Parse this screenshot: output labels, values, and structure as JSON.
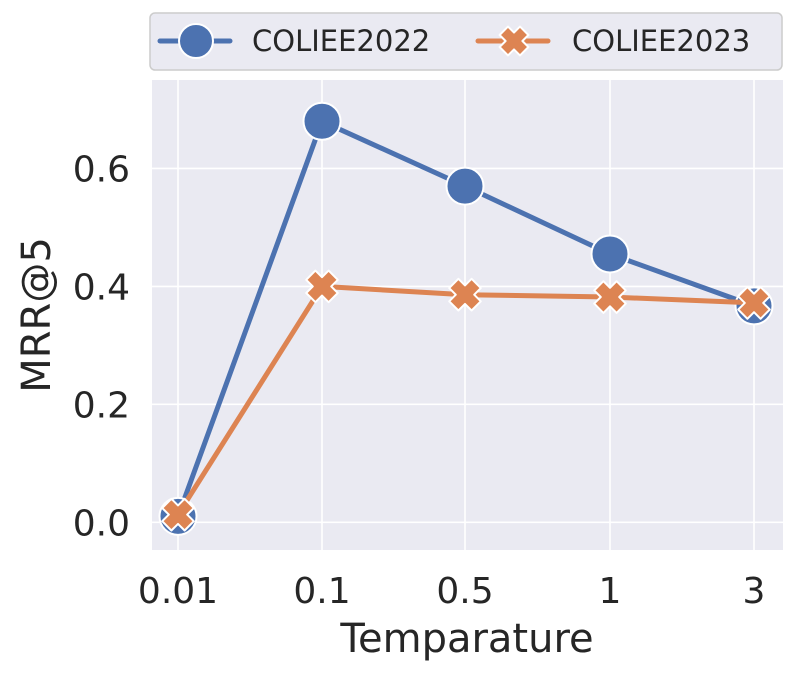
{
  "chart_data": {
    "type": "line",
    "x_categories": [
      "0.01",
      "0.1",
      "0.5",
      "1",
      "3"
    ],
    "xlabel": "Temparature",
    "ylabel": "MRR@5",
    "ylim": [
      -0.047,
      0.75
    ],
    "yticks": [
      "0.0",
      "0.2",
      "0.4",
      "0.6"
    ],
    "grid": true,
    "legend_position": "top",
    "series": [
      {
        "name": "COLIEE2022",
        "values": [
          0.01,
          0.68,
          0.57,
          0.455,
          0.367
        ],
        "color": "#4c72b0",
        "marker": "circle"
      },
      {
        "name": "COLIEE2023",
        "values": [
          0.013,
          0.4,
          0.386,
          0.382,
          0.372
        ],
        "color": "#dd8452",
        "marker": "x"
      }
    ]
  }
}
